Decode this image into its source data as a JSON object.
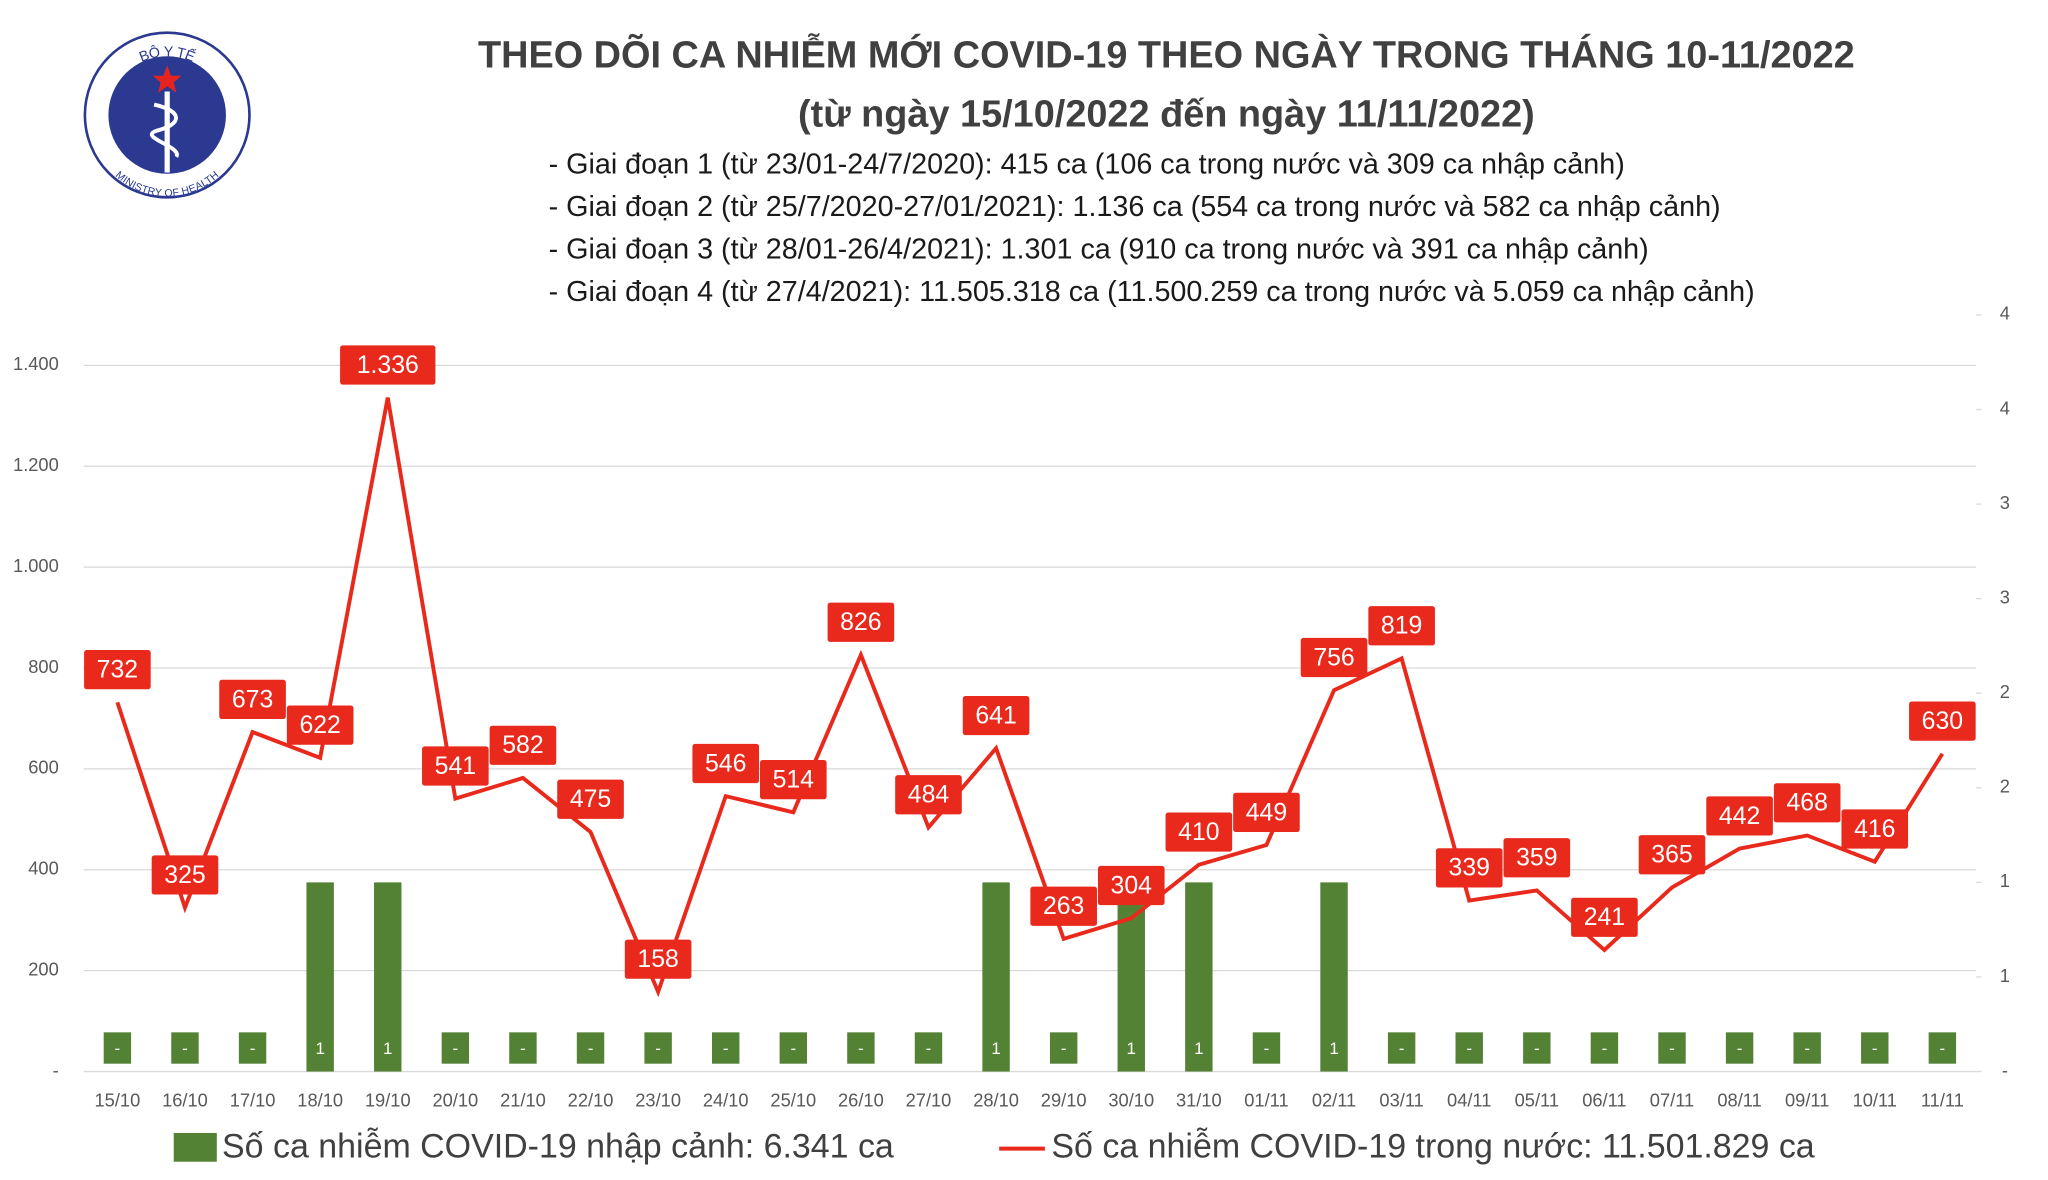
{
  "logo": {
    "top": "BỘ Y TẾ",
    "bottom": "MINISTRY OF HEALTH"
  },
  "chart_data": {
    "type": "combo",
    "title": "THEO DÕI CA NHIỄM MỚI COVID-19 THEO NGÀY TRONG THÁNG 10-11/2022",
    "subtitle": "(từ ngày 15/10/2022 đến ngày 11/11/2022)",
    "notes": [
      "- Giai đoạn 1 (từ 23/01-24/7/2020): 415 ca (106 ca trong nước và 309 ca nhập cảnh)",
      "- Giai đoạn 2 (từ 25/7/2020-27/01/2021): 1.136 ca (554 ca trong nước và 582 ca nhập cảnh)",
      "- Giai đoạn 3 (từ 28/01-26/4/2021): 1.301 ca (910 ca trong nước và 391 ca nhập cảnh)",
      "- Giai đoạn 4 (từ 27/4/2021): 11.505.318 ca (11.500.259 ca trong nước và 5.059 ca nhập cảnh)"
    ],
    "categories": [
      "15/10",
      "16/10",
      "17/10",
      "18/10",
      "19/10",
      "20/10",
      "21/10",
      "22/10",
      "23/10",
      "24/10",
      "25/10",
      "26/10",
      "27/10",
      "28/10",
      "29/10",
      "30/10",
      "31/10",
      "01/11",
      "02/11",
      "03/11",
      "04/11",
      "05/11",
      "06/11",
      "07/11",
      "08/11",
      "09/11",
      "10/11",
      "11/11"
    ],
    "series": [
      {
        "name": "Số ca nhiễm COVID-19 nhập cảnh: 6.341 ca",
        "type": "bar",
        "color": "#548235",
        "axis": "y2",
        "values": [
          0,
          0,
          0,
          1,
          1,
          0,
          0,
          0,
          0,
          0,
          0,
          0,
          0,
          1,
          0,
          1,
          1,
          0,
          1,
          0,
          0,
          0,
          0,
          0,
          0,
          0,
          0,
          0
        ],
        "value_labels": [
          "-",
          "-",
          "-",
          "1",
          "1",
          "-",
          "-",
          "-",
          "-",
          "-",
          "-",
          "-",
          "-",
          "1",
          "-",
          "1",
          "1",
          "-",
          "1",
          "-",
          "-",
          "-",
          "-",
          "-",
          "-",
          "-",
          "-",
          "-"
        ]
      },
      {
        "name": "Số ca nhiễm COVID-19 trong nước: 11.501.829 ca",
        "type": "line",
        "color": "#e8291c",
        "values": [
          732,
          325,
          673,
          622,
          1336,
          541,
          582,
          475,
          158,
          546,
          514,
          826,
          484,
          641,
          263,
          304,
          410,
          449,
          756,
          819,
          339,
          359,
          241,
          365,
          442,
          468,
          416,
          630
        ],
        "value_labels": [
          "732",
          "325",
          "673",
          "622",
          "1.336",
          "541",
          "582",
          "475",
          "158",
          "546",
          "514",
          "826",
          "484",
          "641",
          "263",
          "304",
          "410",
          "449",
          "756",
          "819",
          "339",
          "359",
          "241",
          "365",
          "442",
          "468",
          "416",
          "630"
        ]
      }
    ],
    "ylim": [
      0,
      1500
    ],
    "yticks": [
      {
        "value": 0,
        "label": "-"
      },
      200,
      400,
      600,
      800,
      {
        "value": 1000,
        "label": "1.000"
      },
      {
        "value": 1200,
        "label": "1.200"
      },
      {
        "value": 1400,
        "label": "1.400"
      }
    ],
    "y2lim": [
      0,
      4
    ],
    "y2ticks": [
      {
        "value": 0,
        "label": "-"
      },
      {
        "value": 0.5,
        "label": "1"
      },
      {
        "value": 1,
        "label": "1"
      },
      {
        "value": 1.5,
        "label": "2"
      },
      {
        "value": 2,
        "label": "2"
      },
      {
        "value": 2.5,
        "label": "3"
      },
      {
        "value": 3,
        "label": "3"
      },
      {
        "value": 3.5,
        "label": "4"
      },
      {
        "value": 4,
        "label": "4"
      }
    ],
    "grid": true
  }
}
